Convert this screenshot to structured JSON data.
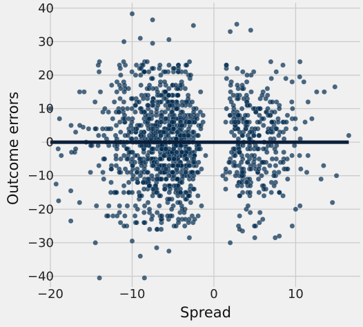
{
  "chart_data": {
    "type": "scatter",
    "title": "",
    "xlabel": "Spread",
    "ylabel": "Outcome errors",
    "xlim": [
      -21.1,
      17.9
    ],
    "ylim": [
      -43.2,
      41.6
    ],
    "xticks": [
      -20,
      -10,
      0,
      10
    ],
    "yticks": [
      -40,
      -30,
      -20,
      -10,
      0,
      10,
      20,
      30,
      40
    ],
    "xtick_labels": [
      "−20",
      "−10",
      "0",
      "10"
    ],
    "ytick_labels": [
      "−40",
      "−30",
      "−20",
      "−10",
      "0",
      "10",
      "20",
      "30",
      "40"
    ],
    "grid": true,
    "background": "#f0f0f0",
    "grid_color": "#cbcbcb",
    "point_color": "#012b4f",
    "point_opacity": 0.7,
    "line_color": "#0b1f3a",
    "fit_line": {
      "x": [
        -20,
        16.5
      ],
      "y": [
        0,
        0
      ]
    },
    "sampling": {
      "n": 1230,
      "seed": 12345,
      "sd": 12.0,
      "min_abs_x": 1.0,
      "x_range": [
        -19.5,
        16.0
      ]
    },
    "points": [
      {
        "x": -10,
        "y": 38.3
      },
      {
        "x": -7.5,
        "y": 36.5
      },
      {
        "x": 2.8,
        "y": 35.2
      },
      {
        "x": -2.5,
        "y": 34.8
      },
      {
        "x": 2,
        "y": 33
      },
      {
        "x": 4.5,
        "y": 33.4
      },
      {
        "x": -9,
        "y": 31
      },
      {
        "x": -11,
        "y": 30
      },
      {
        "x": -5.5,
        "y": 30.6
      },
      {
        "x": -7.5,
        "y": 29.5
      },
      {
        "x": -20,
        "y": 10
      },
      {
        "x": -19,
        "y": -17.5
      },
      {
        "x": -19.3,
        "y": -12.5
      },
      {
        "x": -17.5,
        "y": -23.5
      },
      {
        "x": -17.5,
        "y": -14.5
      },
      {
        "x": -16,
        "y": 4.5
      },
      {
        "x": -14,
        "y": 24
      },
      {
        "x": -14,
        "y": -40.5
      },
      {
        "x": -14.5,
        "y": -30
      },
      {
        "x": -8.5,
        "y": -40.5
      },
      {
        "x": -9,
        "y": -34
      },
      {
        "x": -10,
        "y": -29.5
      },
      {
        "x": -5.5,
        "y": -32.5
      },
      {
        "x": -7,
        "y": -31.5
      },
      {
        "x": -3,
        "y": -28.5
      },
      {
        "x": 2,
        "y": -30
      },
      {
        "x": 5,
        "y": -28.5
      },
      {
        "x": 3.5,
        "y": -26.5
      },
      {
        "x": 7.5,
        "y": -28.5
      },
      {
        "x": 8,
        "y": -28
      },
      {
        "x": 16.5,
        "y": 2
      },
      {
        "x": 15,
        "y": -10
      },
      {
        "x": 14.5,
        "y": -18
      },
      {
        "x": 14.8,
        "y": 16.5
      },
      {
        "x": 13.5,
        "y": 15
      },
      {
        "x": 10,
        "y": -20
      },
      {
        "x": 11,
        "y": 18
      },
      {
        "x": 10.5,
        "y": 19.5
      },
      {
        "x": 8.8,
        "y": 19
      }
    ]
  }
}
